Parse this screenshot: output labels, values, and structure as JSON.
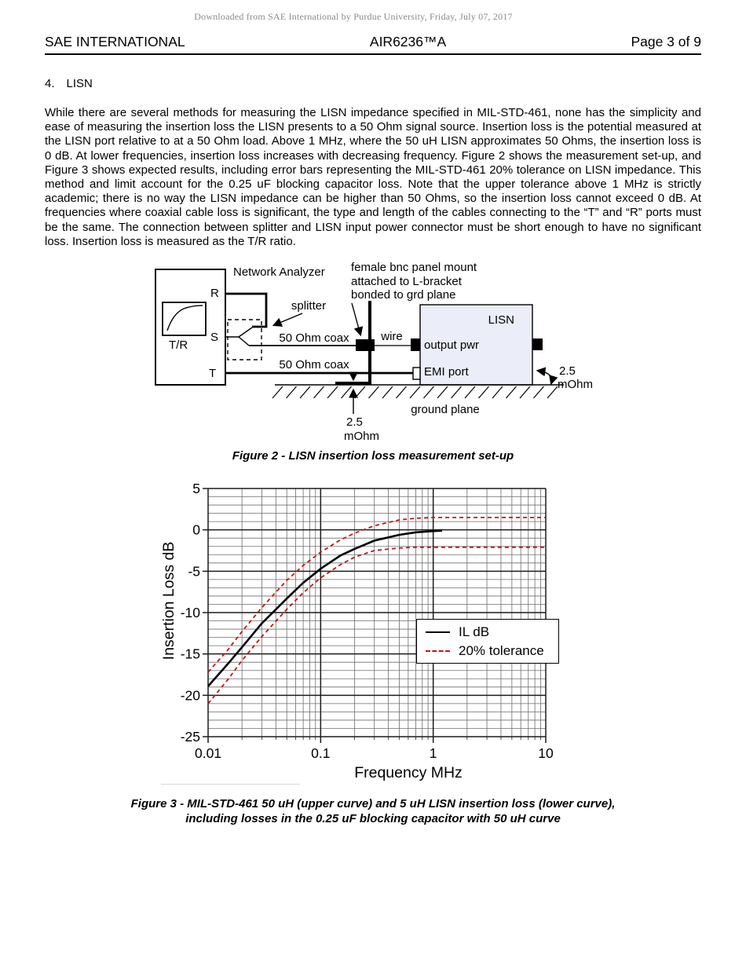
{
  "page": {
    "watermark": "Downloaded from SAE International by Purdue University, Friday, July 07, 2017",
    "header": {
      "left": "SAE INTERNATIONAL",
      "center": "AIR6236™A",
      "right": "Page 3 of 9"
    },
    "section": {
      "number": "4.",
      "title": "LISN"
    },
    "body": "While there are several methods for measuring the LISN impedance specified in MIL-STD-461, none has the simplicity and ease of measuring the insertion loss the LISN presents to a 50 Ohm signal source. Insertion loss is the potential measured at the LISN port relative to at a 50 Ohm load. Above 1 MHz, where the 50 uH LISN approximates 50 Ohms, the insertion loss is 0 dB. At lower frequencies, insertion loss increases with decreasing frequency. Figure 2 shows the measurement set-up, and Figure 3 shows expected results, including error bars representing the MIL-STD-461 20% tolerance on LISN impedance. This method and limit account for the 0.25 uF blocking capacitor loss. Note that the upper tolerance above 1 MHz is strictly academic; there is no way the LISN impedance can be higher than 50 Ohms, so the insertion loss cannot exceed 0 dB. At frequencies where coaxial cable loss is significant, the type and length of the cables connecting to the “T” and “R” ports must be the same. The connection between splitter and LISN input power connector must be short enough to have no significant loss. Insertion loss is measured as the T/R ratio."
  },
  "figure2": {
    "caption": "Figure 2 - LISN insertion loss measurement set-up",
    "labels": {
      "network_analyzer": "Network Analyzer",
      "tr_display": "T/R",
      "port_r": "R",
      "port_s": "S",
      "port_t": "T",
      "splitter": "splitter",
      "coax_top": "50 Ohm coax",
      "coax_bottom": "50 Ohm coax",
      "bnc_note_line1": "female bnc panel mount",
      "bnc_note_line2": "attached to L-bracket",
      "bnc_note_line3": "bonded to grd plane",
      "wire": "wire",
      "lisn": "LISN",
      "output_pwr": "output pwr",
      "emi_port": "EMI port",
      "ground_plane": "ground plane",
      "mohm_bottom_value": "2.5",
      "mohm_bottom_unit": "mOhm",
      "mohm_right_value": "2.5",
      "mohm_right_unit": "mOhm"
    },
    "lisn_fill_color": "#ebedf8"
  },
  "figure3": {
    "caption_line1": "Figure 3 - MIL-STD-461 50 uH (upper curve) and 5 uH LISN insertion loss (lower curve),",
    "caption_line2": "including losses in the 0.25 uF blocking capacitor with 50 uH curve"
  },
  "chart_data": {
    "type": "line",
    "title": "",
    "xlabel": "Frequency MHz",
    "ylabel": "Insertion Loss dB",
    "x_scale": "log",
    "xlim": [
      0.01,
      10
    ],
    "ylim": [
      -25,
      5
    ],
    "x_major_ticks": [
      0.01,
      0.1,
      1,
      10
    ],
    "x_tick_labels": [
      "0.01",
      "0.1",
      "1",
      "10"
    ],
    "y_major_ticks": [
      5,
      0,
      -5,
      -10,
      -15,
      -20,
      -25
    ],
    "grid": "log minor x (2-9 per decade), minor y every 1 dB, major every 5 dB",
    "legend_position": "center-right inside plot",
    "legend": [
      {
        "label": "IL dB",
        "style": "solid",
        "color": "#000000"
      },
      {
        "label": "20% tolerance",
        "style": "dashed",
        "color": "#c41414"
      }
    ],
    "series": [
      {
        "name": "IL dB",
        "style": "solid",
        "color": "#000000",
        "x": [
          0.01,
          0.015,
          0.02,
          0.03,
          0.05,
          0.07,
          0.1,
          0.15,
          0.2,
          0.3,
          0.5,
          0.7,
          1.0,
          1.2
        ],
        "y": [
          -18.9,
          -16.2,
          -14.2,
          -11.3,
          -8.3,
          -6.4,
          -4.7,
          -3.1,
          -2.3,
          -1.3,
          -0.6,
          -0.3,
          -0.15,
          -0.1
        ]
      },
      {
        "name": "20% tolerance upper",
        "style": "dashed",
        "color": "#c41414",
        "x": [
          0.01,
          0.015,
          0.02,
          0.03,
          0.05,
          0.07,
          0.1,
          0.15,
          0.2,
          0.3,
          0.5,
          0.7,
          1,
          2,
          5,
          10
        ],
        "y": [
          -17.2,
          -14.5,
          -12.3,
          -9.4,
          -6.1,
          -4.3,
          -2.7,
          -1.2,
          -0.4,
          0.5,
          1.2,
          1.4,
          1.5,
          1.5,
          1.5,
          1.5
        ]
      },
      {
        "name": "20% tolerance lower",
        "style": "dashed",
        "color": "#c41414",
        "x": [
          0.01,
          0.015,
          0.02,
          0.03,
          0.05,
          0.07,
          0.1,
          0.15,
          0.2,
          0.3,
          0.5,
          0.7,
          1,
          2,
          5,
          10
        ],
        "y": [
          -21.0,
          -18.1,
          -15.8,
          -12.9,
          -9.6,
          -7.6,
          -5.8,
          -4.2,
          -3.3,
          -2.5,
          -2.2,
          -2.1,
          -2.1,
          -2.1,
          -2.1,
          -2.1
        ]
      }
    ]
  }
}
